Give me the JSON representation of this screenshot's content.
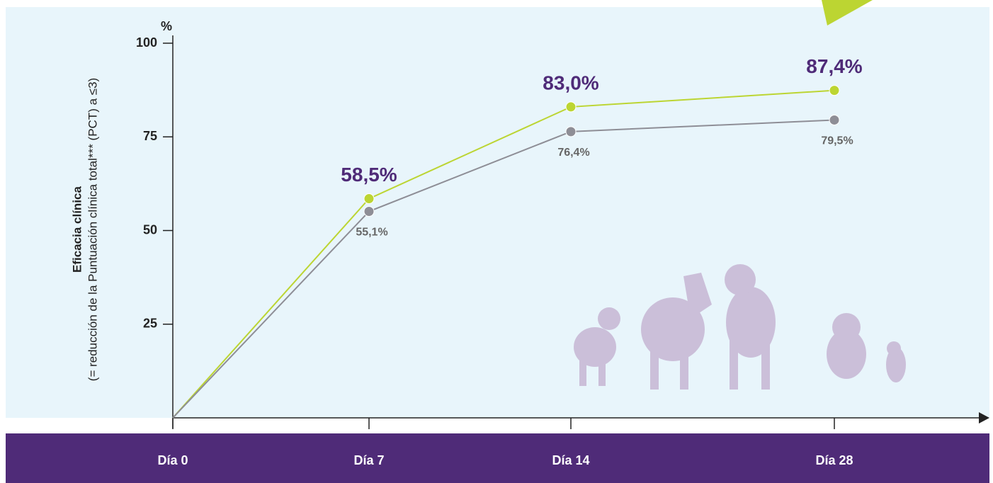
{
  "chart_data": {
    "type": "line",
    "y_unit": "%",
    "y_label_bold": "Eficacia clínica",
    "y_label": "(= reducción de la Puntuación clínica total*** (PCT) a ≤3)",
    "categories": [
      "Día 0",
      "Día 7",
      "Día 14",
      "Día 28"
    ],
    "series": [
      {
        "color": "#bcd532",
        "values": [
          0,
          58.5,
          83.0,
          87.4
        ],
        "value_labels": [
          null,
          "58,5%",
          "83,0%",
          "87,4%"
        ]
      },
      {
        "color": "#8e8e96",
        "values": [
          0,
          55.1,
          76.4,
          79.5
        ],
        "value_labels": [
          null,
          "55,1%",
          "76,4%",
          "79,5%"
        ]
      }
    ],
    "ylim": [
      0,
      100
    ],
    "yticks": [
      25,
      50,
      75,
      100
    ]
  }
}
